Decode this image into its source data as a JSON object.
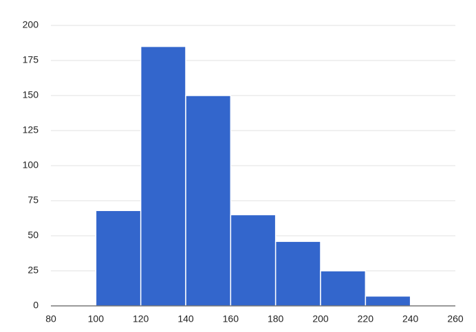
{
  "chart_data": {
    "type": "histogram",
    "bins": [
      100,
      120,
      140,
      160,
      180,
      200,
      220,
      240
    ],
    "counts": [
      68,
      185,
      150,
      65,
      46,
      25,
      7
    ],
    "color": "#3366cc",
    "xlim": [
      80,
      260
    ],
    "xticks": [
      80,
      100,
      120,
      140,
      160,
      180,
      200,
      220,
      240,
      260
    ],
    "ylim": [
      0,
      200
    ],
    "yticks": [
      0,
      25,
      50,
      75,
      100,
      125,
      150,
      175,
      200
    ],
    "grid": true
  }
}
